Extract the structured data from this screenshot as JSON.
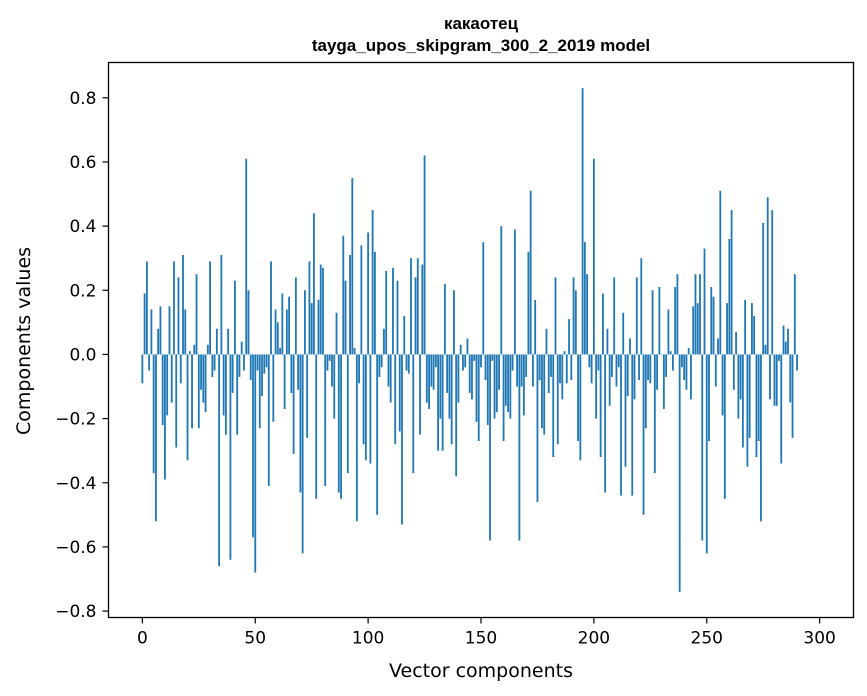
{
  "chart_data": {
    "type": "bar",
    "title_line1": "какаотец",
    "title_line2": "tayga_upos_skipgram_300_2_2019 model",
    "xlabel": "Vector components",
    "ylabel": "Components values",
    "xlim": [
      -15,
      315
    ],
    "ylim": [
      -0.82,
      0.91
    ],
    "xticks": [
      0,
      50,
      100,
      150,
      200,
      250,
      300
    ],
    "xtick_labels": [
      "0",
      "50",
      "100",
      "150",
      "200",
      "250",
      "300"
    ],
    "yticks": [
      -0.8,
      -0.6,
      -0.4,
      -0.2,
      0.0,
      0.2,
      0.4,
      0.6,
      0.8
    ],
    "ytick_labels": [
      "−0.8",
      "−0.6",
      "−0.4",
      "−0.2",
      "0.0",
      "0.2",
      "0.4",
      "0.6",
      "0.8"
    ],
    "bar_color": "#1f77b4",
    "grid": false,
    "values": [
      -0.09,
      0.19,
      0.29,
      -0.05,
      0.14,
      -0.37,
      -0.52,
      0.08,
      0.15,
      -0.22,
      -0.39,
      -0.19,
      0.15,
      -0.15,
      0.29,
      -0.29,
      0.24,
      -0.09,
      0.31,
      0.14,
      -0.33,
      0.01,
      -0.23,
      0.03,
      0.25,
      -0.23,
      -0.11,
      -0.15,
      -0.18,
      0.03,
      0.29,
      -0.07,
      -0.05,
      0.08,
      -0.66,
      0.31,
      -0.19,
      -0.25,
      0.08,
      -0.64,
      -0.12,
      0.23,
      -0.25,
      -0.07,
      0.04,
      -0.05,
      0.61,
      0.2,
      -0.08,
      -0.57,
      -0.68,
      -0.05,
      -0.23,
      -0.13,
      -0.06,
      -0.04,
      -0.41,
      0.29,
      -0.21,
      0.14,
      0.1,
      0.02,
      0.19,
      -0.17,
      0.14,
      0.18,
      -0.12,
      -0.31,
      0.24,
      -0.11,
      -0.43,
      -0.62,
      0.2,
      -0.26,
      0.29,
      0.16,
      0.44,
      -0.45,
      0.17,
      0.28,
      0.27,
      -0.41,
      -0.05,
      -0.02,
      -0.1,
      -0.2,
      0.13,
      -0.43,
      -0.45,
      0.37,
      0.23,
      -0.37,
      0.31,
      0.55,
      0.02,
      -0.52,
      -0.09,
      0.34,
      -0.28,
      -0.33,
      0.38,
      -0.34,
      0.45,
      0.32,
      -0.5,
      -0.07,
      -0.04,
      0.08,
      0.26,
      -0.1,
      -0.15,
      0.27,
      -0.28,
      0.23,
      -0.24,
      -0.53,
      0.12,
      -0.05,
      -0.06,
      0.3,
      -0.37,
      0.24,
      0.3,
      -0.25,
      0.28,
      0.62,
      -0.15,
      -0.17,
      -0.1,
      -0.11,
      -0.04,
      -0.3,
      -0.2,
      -0.3,
      0.22,
      -0.12,
      -0.2,
      -0.28,
      0.2,
      -0.38,
      -0.15,
      0.03,
      -0.05,
      -0.04,
      0.05,
      -0.12,
      -0.14,
      -0.02,
      -0.21,
      -0.27,
      -0.04,
      0.35,
      -0.08,
      -0.22,
      -0.58,
      -0.02,
      -0.2,
      -0.18,
      -0.11,
      0.4,
      -0.27,
      -0.16,
      -0.18,
      -0.2,
      -0.05,
      0.39,
      -0.1,
      -0.58,
      -0.1,
      -0.19,
      -0.07,
      0.32,
      0.51,
      -0.1,
      0.17,
      -0.46,
      -0.08,
      -0.23,
      -0.25,
      0.08,
      -0.12,
      -0.07,
      -0.32,
      0.24,
      -0.28,
      -0.09,
      -0.14,
      0.01,
      -0.09,
      0.11,
      -0.08,
      0.24,
      0.2,
      -0.27,
      -0.33,
      0.83,
      0.35,
      0.25,
      -0.04,
      -0.09,
      0.61,
      -0.2,
      -0.05,
      -0.32,
      0.19,
      -0.43,
      0.08,
      -0.16,
      -0.07,
      0.24,
      -0.1,
      -0.04,
      -0.44,
      0.13,
      -0.35,
      -0.13,
      0.05,
      -0.44,
      -0.14,
      0.24,
      -0.08,
      0.3,
      -0.5,
      -0.23,
      -0.08,
      -0.09,
      0.2,
      -0.37,
      -0.11,
      0.21,
      0.0,
      -0.17,
      -0.07,
      0.14,
      0.01,
      -0.05,
      0.21,
      0.25,
      -0.74,
      -0.04,
      -0.08,
      -0.11,
      0.02,
      -0.14,
      0.15,
      0.25,
      0.16,
      0.25,
      -0.58,
      0.33,
      -0.62,
      -0.27,
      0.21,
      0.18,
      -0.1,
      0.05,
      0.51,
      -0.19,
      -0.45,
      0.16,
      0.36,
      0.45,
      -0.11,
      0.07,
      -0.2,
      -0.14,
      -0.29,
      0.17,
      -0.35,
      -0.26,
      0.16,
      0.12,
      -0.32,
      -0.27,
      -0.52,
      0.41,
      0.03,
      0.49,
      -0.14,
      0.45,
      -0.16,
      -0.16,
      -0.02,
      -0.34,
      0.09,
      0.04,
      0.08,
      -0.15,
      -0.26,
      0.25,
      -0.05
    ]
  }
}
